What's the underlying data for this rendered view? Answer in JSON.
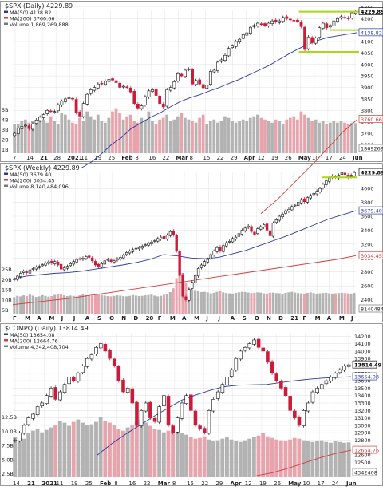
{
  "chart_data": [
    {
      "type": "candlestick",
      "symbol": "$SPX",
      "period": "Daily",
      "title": "$SPX (Daily) 4229.89",
      "legend": [
        {
          "label": "MA(50) 4138.82",
          "color": "#2c3a9c"
        },
        {
          "label": "MA(200) 3760.66",
          "color": "#d23c3c"
        },
        {
          "label": "Volume 1,869,269,888",
          "color": "#777777"
        }
      ],
      "last_value": "4229.89",
      "ma50_value": "4138.82",
      "ma200_value": "3760.66",
      "volume_value": "1869269888",
      "price_ticks": [
        "4250",
        "4200",
        "4150",
        "4100",
        "4050",
        "4000",
        "3950",
        "3900",
        "3850",
        "3800",
        "3750",
        "3700",
        "3650"
      ],
      "volume_ticks": [
        "5B",
        "4B",
        "3B",
        "2B",
        "1B"
      ],
      "date_ticks": [
        "7",
        "14",
        "21",
        "28",
        "2021",
        "11",
        "19",
        "25",
        "Feb",
        "8",
        "16",
        "22",
        "Mar",
        "8",
        "15",
        "22",
        "29",
        "Apr",
        "12",
        "19",
        "26",
        "May",
        "10",
        "17",
        "24",
        "Jun"
      ],
      "ylim": [
        3620,
        4260
      ],
      "close_series": [
        3700,
        3722,
        3730,
        3735,
        3720,
        3740,
        3758,
        3770,
        3782,
        3800,
        3795,
        3795,
        3825,
        3840,
        3850,
        3855,
        3850,
        3790,
        3775,
        3830,
        3870,
        3890,
        3900,
        3915,
        3915,
        3928,
        3935,
        3932,
        3921,
        3900,
        3905,
        3900,
        3880,
        3830,
        3810,
        3820,
        3860,
        3885,
        3890,
        3865,
        3830,
        3815,
        3890,
        3900,
        3925,
        3960,
        3950,
        3975,
        3980,
        3915,
        3930,
        3915,
        3898,
        3910,
        3970,
        3975,
        4010,
        4020,
        4040,
        4070,
        4080,
        4100,
        4110,
        4130,
        4138,
        4162,
        4170,
        4180,
        4175,
        4170,
        4180,
        4190,
        4185,
        4190,
        4205,
        4200,
        4195,
        4190,
        4188,
        4165,
        4065,
        4120,
        4095,
        4115,
        4160,
        4180,
        4160,
        4170,
        4190,
        4200,
        4208,
        4205,
        4200,
        4225,
        4229.89
      ],
      "ma50_series": [
        3550,
        3575,
        3610,
        3650,
        3680,
        3720,
        3745,
        3770,
        3790,
        3815,
        3838,
        3855,
        3868,
        3885,
        3900,
        3918,
        3935,
        3955,
        3975,
        3995,
        4020,
        4045,
        4068,
        4088,
        4105,
        4118,
        4125,
        4132,
        4138.82
      ],
      "ma200_series": [
        3350,
        3380,
        3410,
        3445,
        3480,
        3515,
        3550,
        3585,
        3625,
        3660,
        3700,
        3730,
        3760.66
      ],
      "volume_series_b": [
        1.8,
        1.8,
        2.0,
        2.1,
        1.9,
        2.0,
        1.8,
        2.2,
        2.1,
        1.9,
        2.3,
        2.0,
        1.8,
        2.5,
        2.4,
        2.1,
        1.9,
        1.8,
        2.2,
        2.0,
        2.6,
        2.3,
        2.1,
        2.4,
        2.0,
        1.9,
        2.2,
        2.6,
        2.8,
        2.5,
        2.1,
        2.3,
        2.4,
        2.0,
        1.9,
        2.2,
        2.1,
        2.6,
        2.0,
        1.8,
        2.1,
        2.2,
        2.4,
        2.0,
        2.1,
        2.3,
        2.5,
        2.2,
        2.1,
        2.0,
        1.9,
        2.2,
        2.4,
        1.8,
        2.0,
        2.1,
        1.9,
        2.0,
        2.3,
        2.2,
        2.0,
        1.9,
        2.0,
        2.1,
        2.0,
        2.2,
        2.3,
        2.4,
        2.2,
        2.1,
        2.0,
        1.9,
        2.1,
        2.0,
        1.8,
        2.1,
        2.2,
        2.3,
        2.1,
        2.6,
        2.4,
        2.2,
        2.0,
        2.1,
        1.9,
        2.0,
        1.8,
        1.9,
        2.0,
        1.9,
        2.0,
        1.9,
        1.8,
        1.9,
        1.87
      ],
      "support_lines": [
        4229.89,
        4150,
        4055
      ]
    },
    {
      "type": "candlestick",
      "symbol": "$SPX",
      "period": "Weekly",
      "title": "$SPX (Weekly) 4229.89",
      "legend": [
        {
          "label": "MA(50) 3679.40",
          "color": "#2c3a9c"
        },
        {
          "label": "MA(200) 3034.45",
          "color": "#d23c3c"
        },
        {
          "label": "Volume 8,140,484,096",
          "color": "#777777"
        }
      ],
      "last_value": "4229.89",
      "ma50_value": "3679.40",
      "ma200_value": "3034.45",
      "volume_value": "8140484096",
      "price_ticks": [
        "4000",
        "3800",
        "3600",
        "3400",
        "3200",
        "3000",
        "2800",
        "2600",
        "2400"
      ],
      "volume_ticks": [
        "25B",
        "20B",
        "15B",
        "10B",
        "5B"
      ],
      "date_ticks": [
        "F",
        "M",
        "A",
        "M",
        "J",
        "J",
        "A",
        "S",
        "O",
        "N",
        "D",
        "20",
        "F",
        "M",
        "A",
        "M",
        "J",
        "J",
        "A",
        "S",
        "O",
        "N",
        "D",
        "21",
        "F",
        "M",
        "A",
        "M",
        "J"
      ],
      "ylim": [
        2200,
        4300
      ],
      "close_series": [
        2700,
        2740,
        2780,
        2810,
        2790,
        2830,
        2850,
        2870,
        2880,
        2905,
        2930,
        2945,
        2925,
        2950,
        2900,
        2840,
        2860,
        2880,
        2920,
        2950,
        2980,
        2990,
        3000,
        3020,
        3010,
        2960,
        2900,
        2880,
        2920,
        2960,
        2980,
        2950,
        2960,
        2990,
        3010,
        3040,
        3080,
        3100,
        3120,
        3140,
        3150,
        3170,
        3190,
        3210,
        3230,
        3250,
        3280,
        3300,
        3280,
        3330,
        3380,
        3330,
        3100,
        2750,
        2450,
        2400,
        2550,
        2650,
        2750,
        2850,
        2900,
        2950,
        2980,
        3050,
        3100,
        3150,
        3100,
        3180,
        3220,
        3240,
        3280,
        3300,
        3350,
        3400,
        3430,
        3460,
        3380,
        3340,
        3420,
        3450,
        3480,
        3400,
        3320,
        3500,
        3550,
        3600,
        3630,
        3680,
        3700,
        3740,
        3760,
        3800,
        3840,
        3810,
        3870,
        3900,
        3930,
        3960,
        4000,
        4060,
        4110,
        4150,
        4180,
        4160,
        4190,
        4230,
        4200,
        4160,
        4190,
        4229.89
      ],
      "ma50_series": [
        2700,
        2740,
        2760,
        2780,
        2790,
        2810,
        2840,
        2870,
        2900,
        2935,
        2980,
        3050,
        3030,
        3000,
        2990,
        3010,
        3060,
        3110,
        3180,
        3250,
        3320,
        3400,
        3480,
        3560,
        3620,
        3679.4
      ],
      "ma200_series": [
        2330,
        2360,
        2390,
        2420,
        2460,
        2500,
        2540,
        2580,
        2620,
        2660,
        2700,
        2740,
        2780,
        2820,
        2860,
        2900,
        2940,
        2980,
        3034.45
      ],
      "volume_series_b": [
        6.5,
        7.0,
        6.8,
        7.2,
        6.9,
        7.5,
        7.1,
        6.6,
        6.8,
        7.3,
        7.0,
        6.7,
        6.9,
        7.4,
        7.8,
        7.6,
        7.2,
        6.9,
        7.1,
        7.0,
        6.8,
        7.2,
        7.5,
        7.3,
        6.9,
        7.0,
        7.6,
        7.8,
        7.4,
        7.1,
        6.9,
        6.8,
        7.0,
        7.2,
        7.1,
        6.9,
        6.8,
        7.0,
        7.3,
        7.1,
        6.9,
        7.0,
        7.2,
        7.3,
        7.5,
        7.1,
        6.8,
        7.0,
        7.4,
        7.8,
        8.5,
        10,
        14,
        18,
        16,
        12,
        10,
        9.5,
        9.0,
        8.8,
        8.5,
        8.6,
        8.4,
        8.0,
        8.2,
        8.6,
        8.8,
        8.4,
        8.1,
        8.0,
        7.9,
        8.2,
        8.4,
        8.6,
        8.5,
        8.3,
        8.1,
        8.2,
        8.4,
        8.3,
        8.0,
        7.9,
        8.2,
        8.3,
        8.1,
        8.0,
        7.8,
        8.2,
        8.4,
        8.6,
        8.3,
        8.1,
        8.0,
        7.9,
        8.2,
        8.4,
        8.1,
        7.9,
        8.0,
        8.1,
        8.2,
        8.0,
        7.9,
        8.0,
        8.1,
        8.2,
        8.1,
        8.0,
        7.9,
        8.14
      ]
    },
    {
      "type": "candlestick",
      "symbol": "$COMPQ",
      "period": "Daily",
      "title": "$COMPQ (Daily) 13814.49",
      "legend": [
        {
          "label": "MA(50) 13654.08",
          "color": "#2c3a9c"
        },
        {
          "label": "MA(200) 12664.76",
          "color": "#d23c3c"
        },
        {
          "label": "Volume 4,342,408,704",
          "color": "#777777"
        }
      ],
      "last_value": "13814.49",
      "ma50_value": "13654.08",
      "ma200_value": "12664.76",
      "volume_value": "4342408704",
      "price_ticks": [
        "14200",
        "14100",
        "14000",
        "13900",
        "13800",
        "13700",
        "13600",
        "13500",
        "13400",
        "13300",
        "13200",
        "13100",
        "13000",
        "12900",
        "12800",
        "12700",
        "12600",
        "12500",
        "12400"
      ],
      "volume_ticks": [
        "12.5B",
        "10.0B",
        "7.5B",
        "5.0B",
        "2.5B"
      ],
      "date_ticks": [
        "14",
        "21",
        "2021",
        "11",
        "19",
        "25",
        "Feb",
        "8",
        "16",
        "22",
        "Mar",
        "8",
        "15",
        "22",
        "29",
        "Apr",
        "12",
        "19",
        "26",
        "May",
        "10",
        "17",
        "24",
        "Jun"
      ],
      "ylim": [
        12300,
        14300
      ],
      "close_series": [
        12800,
        12900,
        13000,
        13100,
        13150,
        13250,
        13300,
        13400,
        13500,
        13350,
        13450,
        13550,
        13650,
        13600,
        13700,
        13800,
        13900,
        13950,
        14050,
        14100,
        14000,
        13900,
        13800,
        13600,
        13450,
        13500,
        13300,
        13000,
        13200,
        13300,
        13100,
        13050,
        13250,
        13400,
        13000,
        12900,
        13100,
        13300,
        13400,
        13200,
        13000,
        12950,
        12900,
        13200,
        13350,
        13450,
        13550,
        13650,
        13750,
        13900,
        14000,
        14050,
        14100,
        14150,
        14050,
        14000,
        13850,
        13700,
        13600,
        13500,
        13400,
        13200,
        13100,
        13000,
        13200,
        13300,
        13450,
        13500,
        13550,
        13600,
        13650,
        13700,
        13750,
        13800,
        13814.49
      ],
      "ma50_series": [
        12600,
        12750,
        12880,
        13000,
        13120,
        13230,
        13340,
        13410,
        13470,
        13520,
        13540,
        13545,
        13550,
        13575,
        13600,
        13620,
        13635,
        13645,
        13654.08
      ],
      "ma200_series": [
        12320,
        12360,
        12420,
        12490,
        12560,
        12620,
        12664.76
      ],
      "volume_series_b": [
        5.0,
        5.2,
        4.8,
        5.5,
        5.8,
        6.0,
        5.6,
        5.9,
        6.2,
        6.5,
        7.0,
        6.8,
        6.4,
        6.9,
        7.2,
        6.8,
        6.5,
        6.6,
        6.9,
        7.5,
        7.0,
        6.8,
        6.5,
        6.0,
        5.8,
        6.2,
        6.5,
        7.0,
        7.2,
        6.8,
        6.4,
        6.0,
        5.9,
        5.6,
        5.8,
        6.0,
        5.7,
        5.5,
        5.3,
        5.0,
        4.8,
        4.9,
        5.1,
        4.7,
        4.5,
        4.6,
        4.8,
        5.0,
        4.7,
        4.5,
        4.4,
        4.6,
        4.8,
        5.0,
        5.2,
        5.5,
        5.1,
        4.9,
        4.7,
        4.6,
        4.5,
        4.7,
        4.9,
        4.8,
        4.6,
        4.5,
        4.4,
        4.5,
        4.6,
        4.4,
        4.3,
        4.5,
        4.4,
        4.3,
        4.34
      ]
    }
  ]
}
